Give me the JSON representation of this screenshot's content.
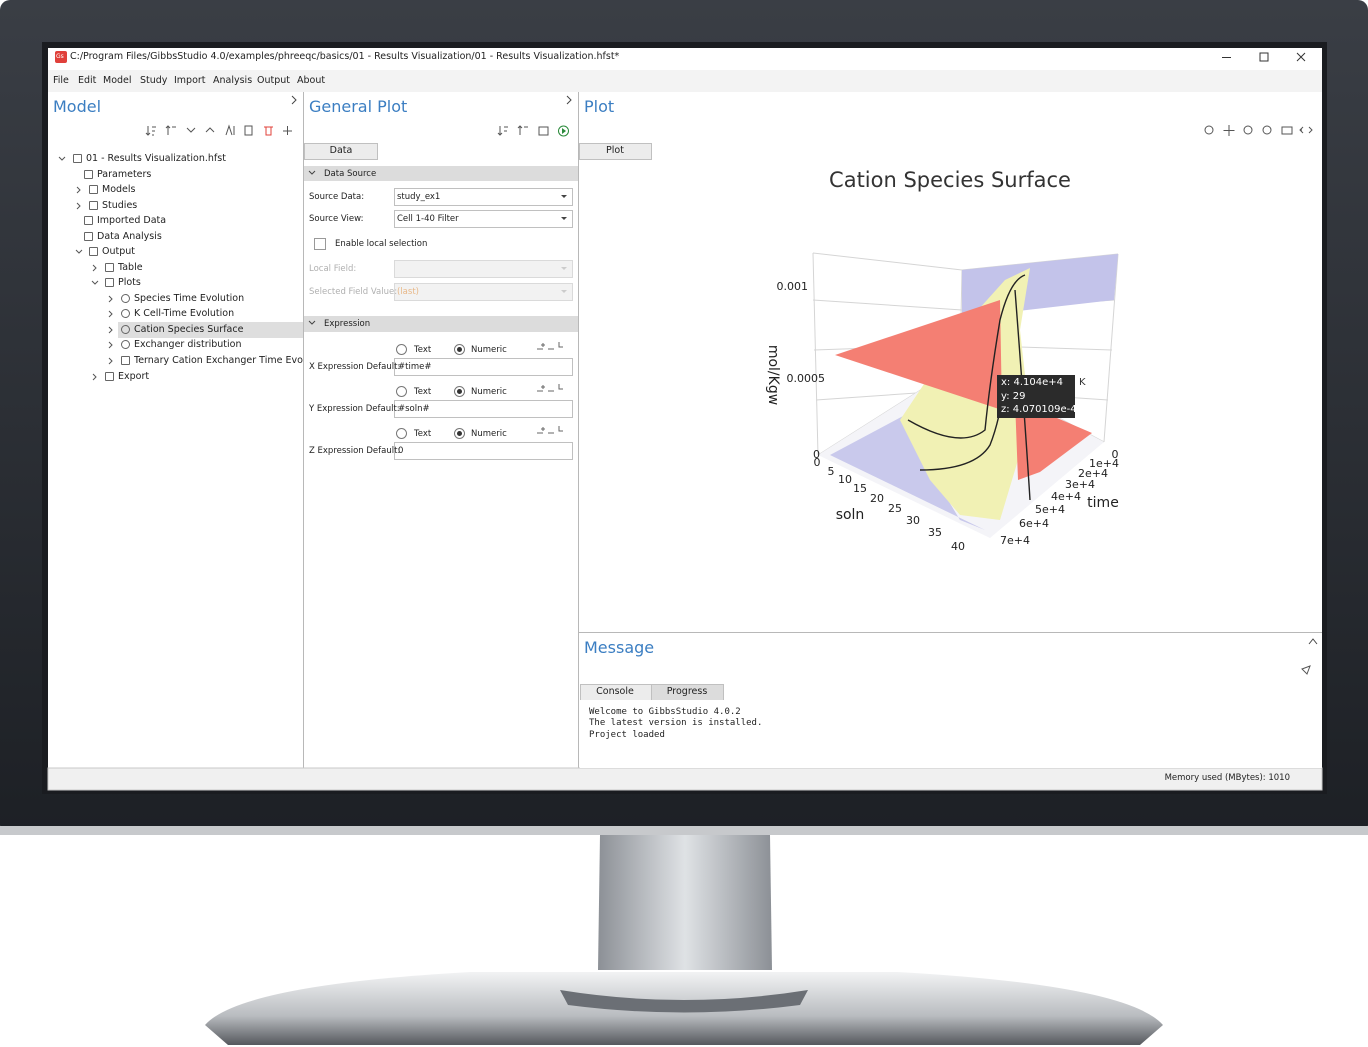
{
  "window": {
    "icon": "Gs",
    "title": "C:/Program Files/GibbsStudio 4.0/examples/phreeqc/basics/01 - Results Visualization/01 - Results Visualization.hfst*"
  },
  "menu": [
    "File",
    "Edit",
    "Model",
    "Study",
    "Import",
    "Analysis",
    "Output",
    "About"
  ],
  "model_panel": {
    "title": "Model",
    "tree": [
      "01 - Results Visualization.hfst",
      "Parameters",
      "Models",
      "Studies",
      "Imported Data",
      "Data Analysis",
      "Output",
      "Table",
      "Plots",
      "Species Time Evolution",
      "K Cell-Time Evolution",
      "Cation Species Surface",
      "Exchanger distribution",
      "Ternary Cation Exchanger Time Evolutio",
      "Export"
    ]
  },
  "general_plot": {
    "title": "General Plot",
    "tab": "Data",
    "data_source": {
      "heading": "Data Source",
      "source_data_label": "Source Data:",
      "source_data": "study_ex1",
      "source_view_label": "Source View:",
      "source_view": "Cell 1-40 Filter",
      "local_selection": "Enable local selection",
      "local_field_label": "Local Field:",
      "selected_field_value_label": "Selected Field Value:",
      "selected_field_value": "(last)"
    },
    "expression": {
      "heading": "Expression",
      "rows": [
        {
          "text_option": "Text",
          "numeric_option": "Numeric",
          "label": "X Expression Default:",
          "value": "#time#"
        },
        {
          "text_option": "Text",
          "numeric_option": "Numeric",
          "label": "Y Expression Default:",
          "value": "#soln#"
        },
        {
          "text_option": "Text",
          "numeric_option": "Numeric",
          "label": "Z Expression Default:",
          "value": "0"
        }
      ]
    }
  },
  "plot_panel": {
    "title": "Plot",
    "tab": "Plot",
    "plot": {
      "title": "Cation Species Surface",
      "z_label": "mol/Kgw",
      "z_ticks": [
        "0.001",
        "0.0005",
        "0"
      ],
      "x_label": "soln",
      "x_ticks": [
        "0",
        "5",
        "10",
        "15",
        "20",
        "25",
        "30",
        "35",
        "40"
      ],
      "y_label": "time",
      "y_ticks": [
        "0",
        "1e+4",
        "2e+4",
        "3e+4",
        "4e+4",
        "5e+4",
        "6e+4",
        "7e+4"
      ],
      "tooltip": [
        "x: 4.104e+4",
        "y: 29",
        "z: 4.070109e-4"
      ],
      "tooltip_series": "K"
    }
  },
  "message_panel": {
    "title": "Message",
    "tabs": [
      "Console",
      "Progress"
    ],
    "console": [
      "Welcome to GibbsStudio 4.0.2",
      "The latest version is installed.",
      "Project loaded"
    ]
  },
  "status_bar": {
    "memory": "Memory used (MBytes): 1010"
  }
}
